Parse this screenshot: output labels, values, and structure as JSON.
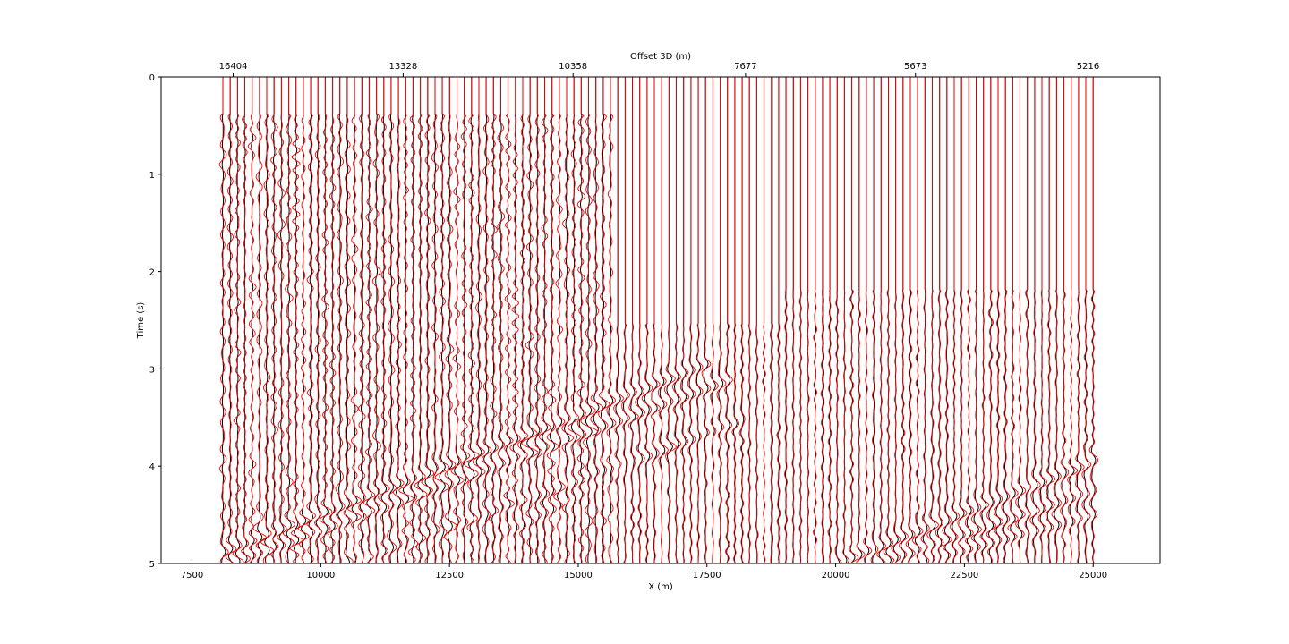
{
  "chart_data": {
    "type": "line",
    "title": "",
    "xlabel": "X (m)",
    "ylabel": "Time (s)",
    "top_xlabel": "Offset 3D (m)",
    "xlim": [
      6900,
      26300
    ],
    "ylim": [
      5,
      0
    ],
    "x_ticks": [
      7500,
      10000,
      12500,
      15000,
      17500,
      20000,
      22500,
      25000
    ],
    "x_tick_labels": [
      "7500",
      "10000",
      "12500",
      "15000",
      "17500",
      "20000",
      "22500",
      "25000"
    ],
    "y_ticks": [
      0,
      1,
      2,
      3,
      4,
      5
    ],
    "y_tick_labels": [
      "0",
      "1",
      "2",
      "3",
      "4",
      "5"
    ],
    "top_ticks_x": [
      8300,
      11600,
      14900,
      18250,
      21550,
      24900
    ],
    "top_tick_labels": [
      "16404",
      "13328",
      "10358",
      "7677",
      "5673",
      "5216"
    ],
    "grid": false,
    "trace_x_range": [
      8100,
      25000
    ],
    "trace_count": 120,
    "trace_half_width_m": 55,
    "series": [
      {
        "color": "#000000"
      },
      {
        "color": "#ff0000"
      }
    ],
    "events": [
      {
        "x": [
          8000,
          17500
        ],
        "t": [
          4.9,
          2.95
        ],
        "strength": 1.0
      },
      {
        "x": [
          8200,
          18000
        ],
        "t": [
          5.0,
          3.1
        ],
        "strength": 1.0
      },
      {
        "x": [
          10500,
          18300
        ],
        "t": [
          5.0,
          3.5
        ],
        "strength": 0.8
      },
      {
        "x": [
          12800,
          16800
        ],
        "t": [
          4.9,
          3.8
        ],
        "strength": 0.6
      },
      {
        "x": [
          20000,
          25000
        ],
        "t": [
          5.0,
          3.95
        ],
        "strength": 1.0
      },
      {
        "x": [
          20800,
          25000
        ],
        "t": [
          5.0,
          4.25
        ],
        "strength": 0.9
      },
      {
        "x": [
          21500,
          25000
        ],
        "t": [
          5.0,
          4.5
        ],
        "strength": 0.8
      }
    ]
  }
}
